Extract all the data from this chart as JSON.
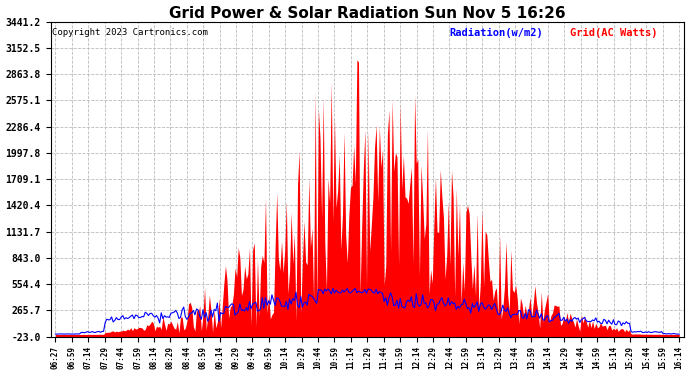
{
  "title": "Grid Power & Solar Radiation Sun Nov 5 16:26",
  "copyright": "Copyright 2023 Cartronics.com",
  "legend_blue": "Radiation(w/m2)",
  "legend_red": "Grid(AC Watts)",
  "yticks": [
    3441.2,
    3152.5,
    2863.8,
    2575.1,
    2286.4,
    1997.8,
    1709.1,
    1420.4,
    1131.7,
    843.0,
    554.4,
    265.7,
    -23.0
  ],
  "ymin": -23.0,
  "ymax": 3441.2,
  "xtick_labels": [
    "06:27",
    "06:59",
    "07:14",
    "07:29",
    "07:44",
    "07:59",
    "08:14",
    "08:29",
    "08:44",
    "08:59",
    "09:14",
    "09:29",
    "09:44",
    "09:59",
    "10:14",
    "10:29",
    "10:44",
    "10:59",
    "11:14",
    "11:29",
    "11:44",
    "11:59",
    "12:14",
    "12:29",
    "12:44",
    "12:59",
    "13:14",
    "13:29",
    "13:44",
    "13:59",
    "14:14",
    "14:29",
    "14:44",
    "14:59",
    "15:14",
    "15:29",
    "15:44",
    "15:59",
    "16:14"
  ],
  "background_color": "#ffffff",
  "grid_color": "#bbbbbb",
  "red_color": "#ff0000",
  "blue_color": "#0000ff",
  "title_color": "#000000",
  "copyright_color": "#000000"
}
